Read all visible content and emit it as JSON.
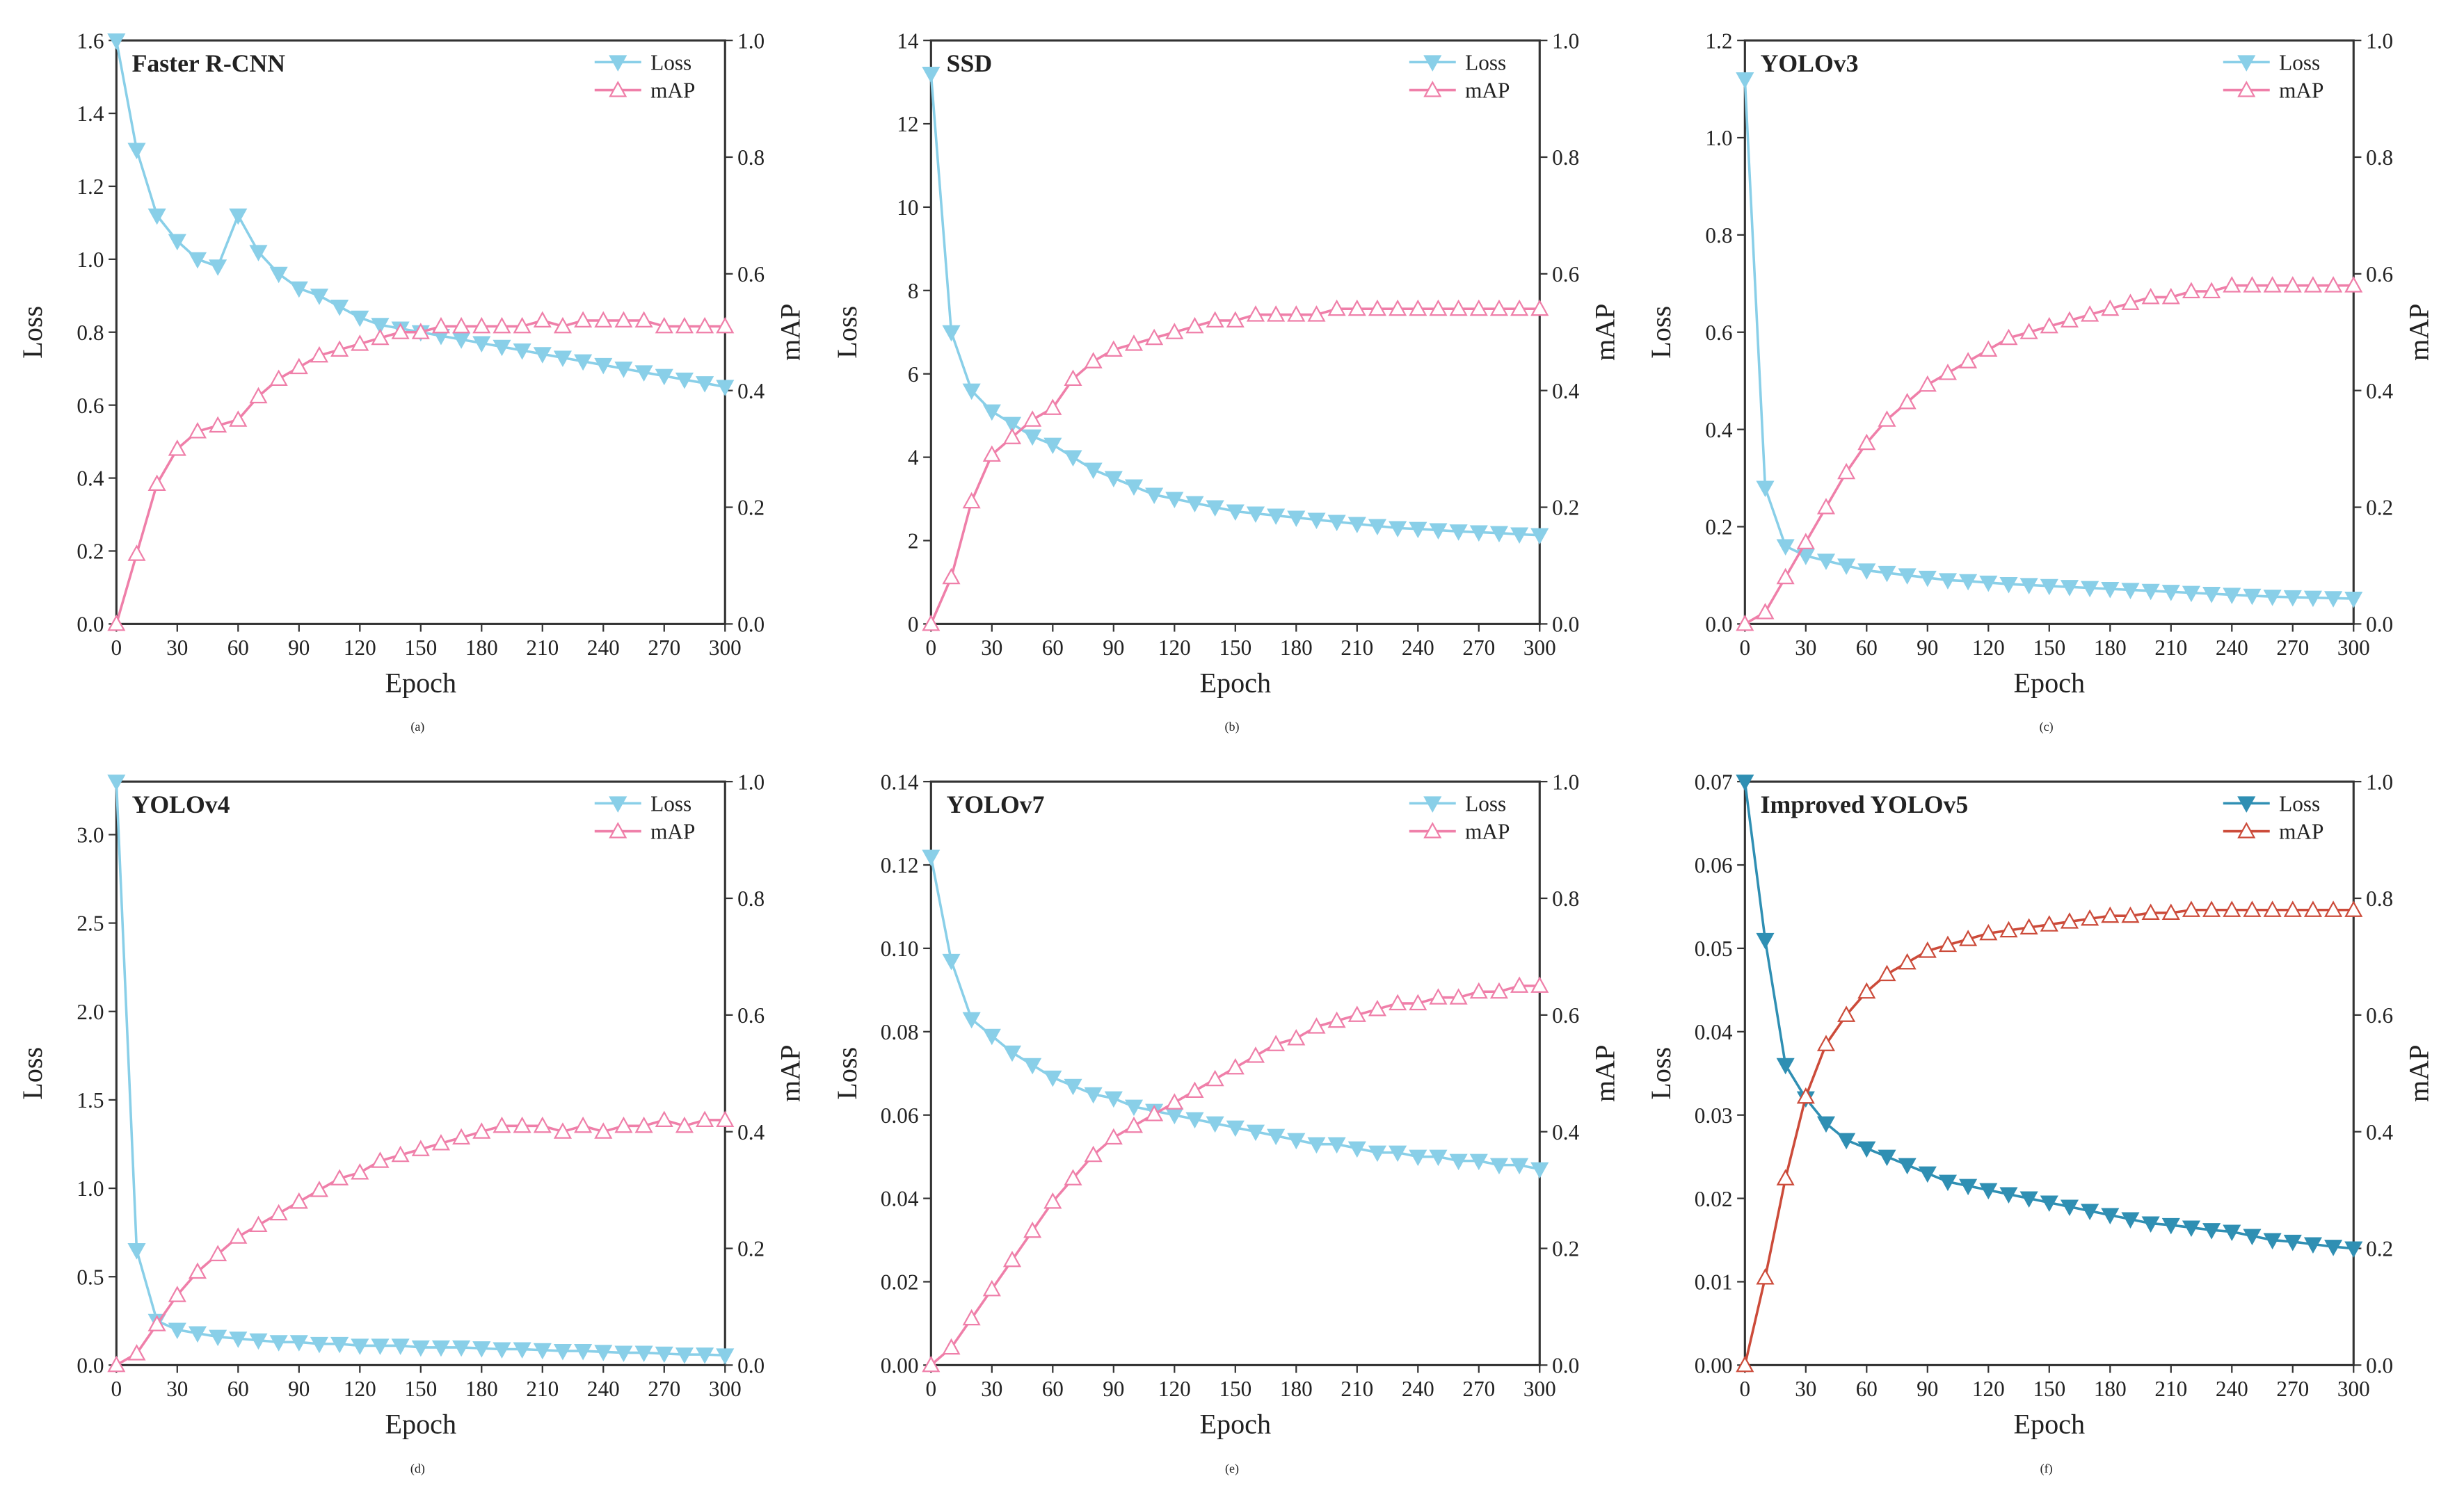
{
  "layout": {
    "rows": 2,
    "cols": 3,
    "background_color": "#ffffff",
    "font_family": "Times New Roman, serif",
    "axis_color": "#333333",
    "grid_color": "#d4d4d4",
    "tick_fontsize": 14,
    "axis_label_fontsize": 18,
    "title_fontsize": 16,
    "title_weight": "bold",
    "legend_fontsize": 14,
    "marker_size": 5,
    "line_width": 1.6,
    "sublabel_fontsize": 18
  },
  "legend_labels": {
    "loss": "Loss",
    "map": "mAP"
  },
  "x": [
    0,
    10,
    20,
    30,
    40,
    50,
    60,
    70,
    80,
    90,
    100,
    110,
    120,
    130,
    140,
    150,
    160,
    170,
    180,
    190,
    200,
    210,
    220,
    230,
    240,
    250,
    260,
    270,
    280,
    290,
    300
  ],
  "charts": [
    {
      "id": "a",
      "sublabel": "(a)",
      "title": "Faster R-CNN",
      "loss_color": "#89cfe8",
      "map_color": "#ef7fa9",
      "xlabel": "Epoch",
      "ylabel_left": "Loss",
      "ylabel_right": "mAP",
      "xlim": [
        0,
        300
      ],
      "xtick_step": 30,
      "ylim_left": [
        0.0,
        1.6
      ],
      "ytick_left_step": 0.2,
      "ylim_right": [
        0.0,
        1.0
      ],
      "ytick_right_step": 0.2,
      "loss": [
        1.6,
        1.3,
        1.12,
        1.05,
        1.0,
        0.98,
        1.12,
        1.02,
        0.96,
        0.92,
        0.9,
        0.87,
        0.84,
        0.82,
        0.81,
        0.8,
        0.79,
        0.78,
        0.77,
        0.76,
        0.75,
        0.74,
        0.73,
        0.72,
        0.71,
        0.7,
        0.69,
        0.68,
        0.67,
        0.66,
        0.65
      ],
      "map": [
        0.0,
        0.12,
        0.24,
        0.3,
        0.33,
        0.34,
        0.35,
        0.39,
        0.42,
        0.44,
        0.46,
        0.47,
        0.48,
        0.49,
        0.5,
        0.5,
        0.51,
        0.51,
        0.51,
        0.51,
        0.51,
        0.52,
        0.51,
        0.52,
        0.52,
        0.52,
        0.52,
        0.51,
        0.51,
        0.51,
        0.51
      ]
    },
    {
      "id": "b",
      "sublabel": "(b)",
      "title": "SSD",
      "loss_color": "#89cfe8",
      "map_color": "#ef7fa9",
      "xlabel": "Epoch",
      "ylabel_left": "Loss",
      "ylabel_right": "mAP",
      "xlim": [
        0,
        300
      ],
      "xtick_step": 30,
      "ylim_left": [
        0,
        14
      ],
      "ytick_left_step": 2,
      "ylim_right": [
        0.0,
        1.0
      ],
      "ytick_right_step": 0.2,
      "loss": [
        13.2,
        7.0,
        5.6,
        5.1,
        4.8,
        4.5,
        4.3,
        4.0,
        3.7,
        3.5,
        3.3,
        3.1,
        3.0,
        2.9,
        2.8,
        2.7,
        2.65,
        2.6,
        2.55,
        2.5,
        2.45,
        2.4,
        2.35,
        2.3,
        2.28,
        2.25,
        2.22,
        2.2,
        2.18,
        2.15,
        2.13
      ],
      "map": [
        0.0,
        0.08,
        0.21,
        0.29,
        0.32,
        0.35,
        0.37,
        0.42,
        0.45,
        0.47,
        0.48,
        0.49,
        0.5,
        0.51,
        0.52,
        0.52,
        0.53,
        0.53,
        0.53,
        0.53,
        0.54,
        0.54,
        0.54,
        0.54,
        0.54,
        0.54,
        0.54,
        0.54,
        0.54,
        0.54,
        0.54
      ]
    },
    {
      "id": "c",
      "sublabel": "(c)",
      "title": "YOLOv3",
      "loss_color": "#89cfe8",
      "map_color": "#ef7fa9",
      "xlabel": "Epoch",
      "ylabel_left": "Loss",
      "ylabel_right": "mAP",
      "xlim": [
        0,
        300
      ],
      "xtick_step": 30,
      "ylim_left": [
        0.0,
        1.2
      ],
      "ytick_left_step": 0.2,
      "ylim_right": [
        0.0,
        1.0
      ],
      "ytick_right_step": 0.2,
      "loss": [
        1.12,
        0.28,
        0.16,
        0.14,
        0.13,
        0.12,
        0.11,
        0.105,
        0.1,
        0.095,
        0.09,
        0.088,
        0.085,
        0.082,
        0.08,
        0.078,
        0.076,
        0.074,
        0.072,
        0.07,
        0.068,
        0.066,
        0.064,
        0.062,
        0.06,
        0.058,
        0.056,
        0.055,
        0.054,
        0.053,
        0.052
      ],
      "map": [
        0.0,
        0.02,
        0.08,
        0.14,
        0.2,
        0.26,
        0.31,
        0.35,
        0.38,
        0.41,
        0.43,
        0.45,
        0.47,
        0.49,
        0.5,
        0.51,
        0.52,
        0.53,
        0.54,
        0.55,
        0.56,
        0.56,
        0.57,
        0.57,
        0.58,
        0.58,
        0.58,
        0.58,
        0.58,
        0.58,
        0.58
      ]
    },
    {
      "id": "d",
      "sublabel": "(d)",
      "title": "YOLOv4",
      "loss_color": "#89cfe8",
      "map_color": "#ef7fa9",
      "xlabel": "Epoch",
      "ylabel_left": "Loss",
      "ylabel_right": "mAP",
      "xlim": [
        0,
        300
      ],
      "xtick_step": 30,
      "ylim_left": [
        0.0,
        3.3
      ],
      "ytick_left_step": 0.5,
      "ylim_right": [
        0.0,
        1.0
      ],
      "ytick_right_step": 0.2,
      "loss": [
        3.3,
        0.65,
        0.25,
        0.2,
        0.18,
        0.16,
        0.15,
        0.14,
        0.13,
        0.13,
        0.12,
        0.12,
        0.11,
        0.11,
        0.11,
        0.1,
        0.1,
        0.1,
        0.095,
        0.09,
        0.09,
        0.085,
        0.08,
        0.08,
        0.075,
        0.07,
        0.07,
        0.065,
        0.06,
        0.06,
        0.055
      ],
      "map": [
        0.0,
        0.02,
        0.07,
        0.12,
        0.16,
        0.19,
        0.22,
        0.24,
        0.26,
        0.28,
        0.3,
        0.32,
        0.33,
        0.35,
        0.36,
        0.37,
        0.38,
        0.39,
        0.4,
        0.41,
        0.41,
        0.41,
        0.4,
        0.41,
        0.4,
        0.41,
        0.41,
        0.42,
        0.41,
        0.42,
        0.42
      ]
    },
    {
      "id": "e",
      "sublabel": "(e)",
      "title": "YOLOv7",
      "loss_color": "#89cfe8",
      "map_color": "#ef7fa9",
      "xlabel": "Epoch",
      "ylabel_left": "Loss",
      "ylabel_right": "mAP",
      "xlim": [
        0,
        300
      ],
      "xtick_step": 30,
      "ylim_left": [
        0.0,
        0.14
      ],
      "ytick_left_step": 0.02,
      "ylim_right": [
        0.0,
        1.0
      ],
      "ytick_right_step": 0.2,
      "loss": [
        0.122,
        0.097,
        0.083,
        0.079,
        0.075,
        0.072,
        0.069,
        0.067,
        0.065,
        0.064,
        0.062,
        0.061,
        0.06,
        0.059,
        0.058,
        0.057,
        0.056,
        0.055,
        0.054,
        0.053,
        0.053,
        0.052,
        0.051,
        0.051,
        0.05,
        0.05,
        0.049,
        0.049,
        0.048,
        0.048,
        0.047
      ],
      "map": [
        0.0,
        0.03,
        0.08,
        0.13,
        0.18,
        0.23,
        0.28,
        0.32,
        0.36,
        0.39,
        0.41,
        0.43,
        0.45,
        0.47,
        0.49,
        0.51,
        0.53,
        0.55,
        0.56,
        0.58,
        0.59,
        0.6,
        0.61,
        0.62,
        0.62,
        0.63,
        0.63,
        0.64,
        0.64,
        0.65,
        0.65
      ]
    },
    {
      "id": "f",
      "sublabel": "(f)",
      "title": "Improved YOLOv5",
      "loss_color": "#2f8fb3",
      "map_color": "#cc4b3a",
      "xlabel": "Epoch",
      "ylabel_left": "Loss",
      "ylabel_right": "mAP",
      "xlim": [
        0,
        300
      ],
      "xtick_step": 30,
      "ylim_left": [
        0.0,
        0.07
      ],
      "ytick_left_step": 0.01,
      "ylim_right": [
        0.0,
        1.0
      ],
      "ytick_right_step": 0.2,
      "loss": [
        0.07,
        0.051,
        0.036,
        0.032,
        0.029,
        0.027,
        0.026,
        0.025,
        0.024,
        0.023,
        0.022,
        0.0215,
        0.021,
        0.0205,
        0.02,
        0.0195,
        0.019,
        0.0185,
        0.018,
        0.0175,
        0.017,
        0.0168,
        0.0165,
        0.0162,
        0.016,
        0.0155,
        0.015,
        0.0148,
        0.0145,
        0.0142,
        0.014
      ],
      "map": [
        0.0,
        0.15,
        0.32,
        0.46,
        0.55,
        0.6,
        0.64,
        0.67,
        0.69,
        0.71,
        0.72,
        0.73,
        0.74,
        0.745,
        0.75,
        0.755,
        0.76,
        0.765,
        0.77,
        0.77,
        0.775,
        0.775,
        0.78,
        0.78,
        0.78,
        0.78,
        0.78,
        0.78,
        0.78,
        0.78,
        0.78
      ]
    }
  ]
}
